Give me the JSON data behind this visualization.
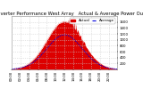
{
  "title": "Solar PV/Inverter Performance West Array   Actual & Average Power Output",
  "bg_color": "#ffffff",
  "plot_bg_color": "#ffffff",
  "bar_color": "#dd0000",
  "avg_line_color": "#0000dd",
  "grid_color": "#aaaaaa",
  "ylim": [
    0,
    1800
  ],
  "ytick_labels": [
    "200",
    "400",
    "600",
    "800",
    "1000",
    "1200",
    "1400",
    "1600"
  ],
  "ytick_values": [
    200,
    400,
    600,
    800,
    1000,
    1200,
    1400,
    1600
  ],
  "num_points": 288,
  "peak_power": 1620,
  "title_fontsize": 3.8,
  "tick_fontsize": 2.8,
  "legend_fontsize": 3.0
}
